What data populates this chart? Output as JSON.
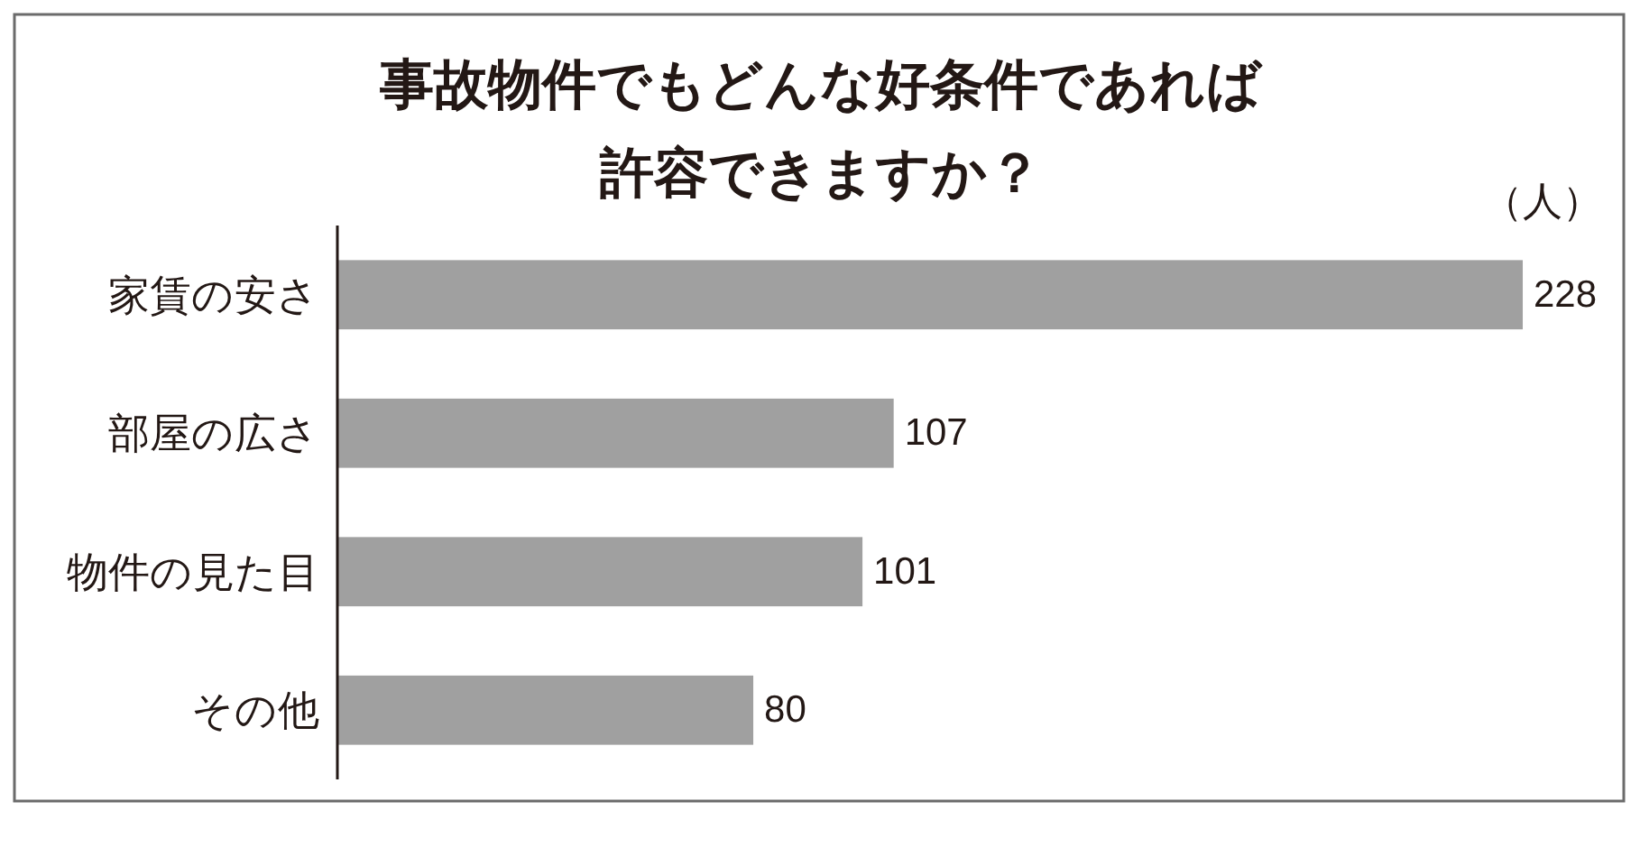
{
  "chart_data": {
    "type": "bar",
    "orientation": "horizontal",
    "title": "事故物件でもどんな好条件であれば許容できますか？",
    "xlabel": "（人）",
    "categories": [
      "家賃の安さ",
      "部屋の広さ",
      "物件の見た目",
      "その他"
    ],
    "values": [
      228,
      107,
      101,
      80
    ],
    "color": "#a0a0a0",
    "data_labels": true
  }
}
